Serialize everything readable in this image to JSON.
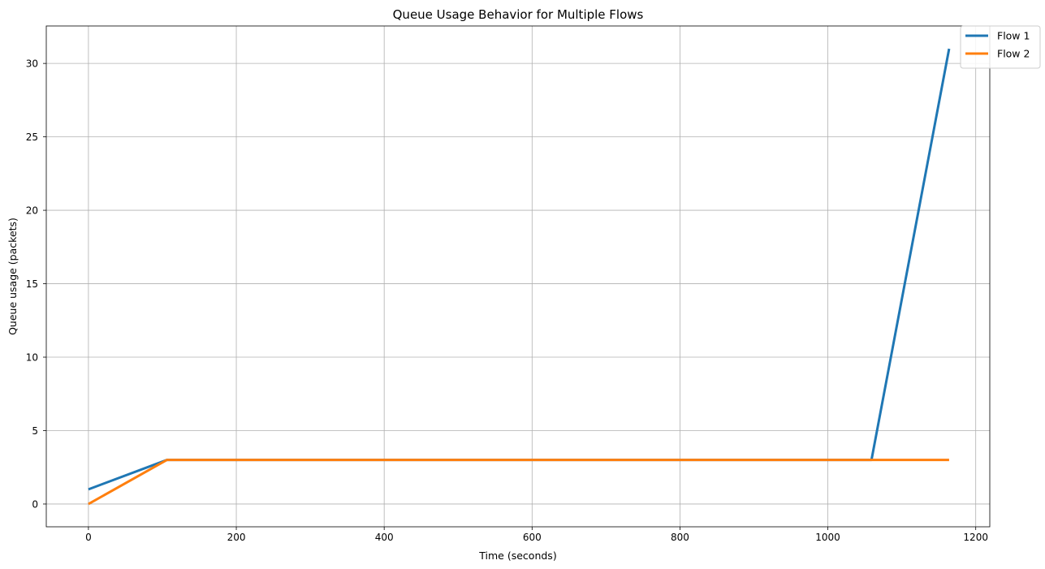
{
  "chart_data": {
    "type": "line",
    "title": "Queue Usage Behavior for Multiple Flows",
    "xlabel": "Time (seconds)",
    "ylabel": "Queue usage (packets)",
    "xlim": [
      -57,
      1219
    ],
    "ylim": [
      -1.55,
      32.55
    ],
    "xticks": [
      0,
      200,
      400,
      600,
      800,
      1000,
      1200
    ],
    "yticks": [
      0,
      5,
      10,
      15,
      20,
      25,
      30
    ],
    "grid": true,
    "legend_position": "top-right",
    "series": [
      {
        "name": "Flow 1",
        "color": "#1f77b4",
        "x": [
          0,
          106,
          1059,
          1164
        ],
        "y": [
          1,
          3,
          3,
          31
        ]
      },
      {
        "name": "Flow 2",
        "color": "#ff7f0e",
        "x": [
          0,
          106,
          1164
        ],
        "y": [
          0,
          3,
          3
        ]
      }
    ]
  }
}
